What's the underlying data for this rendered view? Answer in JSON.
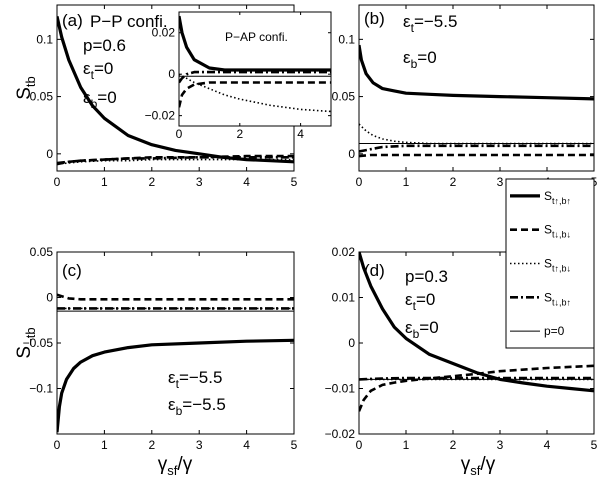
{
  "chart_data": [
    {
      "id": "a",
      "type": "line",
      "xlim": [
        0,
        5
      ],
      "ylim": [
        -0.015,
        0.13
      ],
      "xticks": [
        "0",
        "1",
        "2",
        "3",
        "4",
        "5"
      ],
      "yticks": [
        {
          "v": 0,
          "label": "0"
        },
        {
          "v": 0.05,
          "label": "0.05"
        },
        {
          "v": 0.1,
          "label": "0.1"
        }
      ],
      "ylabel_main": "S",
      "ylabel_sub": "tb",
      "annotations": [
        "(a)",
        "P−P confi.",
        "p=0.6",
        "ε",
        "t",
        "=0",
        "ε",
        "b",
        "=0"
      ],
      "series": [
        {
          "style": "thick",
          "x": [
            0,
            0.1,
            0.25,
            0.5,
            0.75,
            1,
            1.5,
            2,
            2.5,
            3,
            3.5,
            4,
            4.5,
            5
          ],
          "y": [
            0.12,
            0.102,
            0.082,
            0.058,
            0.042,
            0.031,
            0.016,
            0.008,
            0.003,
            0.0,
            -0.003,
            -0.005,
            -0.006,
            -0.007
          ]
        },
        {
          "style": "dashed",
          "x": [
            0,
            0.25,
            0.5,
            1,
            1.5,
            2,
            3,
            4,
            5
          ],
          "y": [
            -0.009,
            -0.007,
            -0.006,
            -0.005,
            -0.004,
            -0.003,
            -0.003,
            -0.002,
            -0.002
          ]
        },
        {
          "style": "dotted",
          "x": [
            0,
            0.25,
            0.5,
            1,
            1.5,
            2,
            3,
            4,
            5
          ],
          "y": [
            -0.009,
            -0.008,
            -0.007,
            -0.006,
            -0.006,
            -0.005,
            -0.005,
            -0.005,
            -0.005
          ]
        },
        {
          "style": "dashdot",
          "x": [
            0,
            0.25,
            0.5,
            1,
            1.5,
            2,
            3,
            4,
            5
          ],
          "y": [
            -0.008,
            -0.007,
            -0.006,
            -0.005,
            -0.004,
            -0.004,
            -0.003,
            -0.003,
            -0.003
          ]
        }
      ]
    },
    {
      "id": "a-inset",
      "type": "line",
      "title": "P−AP confi.",
      "xlim": [
        0,
        5
      ],
      "ylim": [
        -0.025,
        0.03
      ],
      "xticks": [
        "0",
        "2",
        "4"
      ],
      "yticks": [
        {
          "v": 0.02,
          "label": "0.02"
        },
        {
          "v": 0,
          "label": "0"
        },
        {
          "v": -0.02,
          "label": "−0.02"
        }
      ],
      "series": [
        {
          "style": "thick",
          "x": [
            0,
            0.1,
            0.25,
            0.5,
            1,
            1.5,
            2,
            3,
            4,
            5
          ],
          "y": [
            0.028,
            0.02,
            0.013,
            0.007,
            0.003,
            0.002,
            0.002,
            0.002,
            0.002,
            0.002
          ]
        },
        {
          "style": "dashed",
          "x": [
            0,
            0.1,
            0.25,
            0.5,
            1,
            1.5,
            2,
            3,
            4,
            5
          ],
          "y": [
            -0.016,
            -0.01,
            -0.007,
            -0.005,
            -0.004,
            -0.004,
            -0.004,
            -0.004,
            -0.004,
            -0.004
          ]
        },
        {
          "style": "dotted",
          "x": [
            0,
            0.25,
            0.5,
            1,
            1.5,
            2,
            3,
            4,
            5
          ],
          "y": [
            0.0,
            -0.002,
            -0.004,
            -0.007,
            -0.01,
            -0.012,
            -0.015,
            -0.017,
            -0.018
          ]
        },
        {
          "style": "dashdot",
          "x": [
            0,
            0.1,
            0.25,
            0.5,
            1,
            1.5,
            2,
            3,
            4,
            5
          ],
          "y": [
            -0.004,
            -0.002,
            0.0,
            0.001,
            0.001,
            0.001,
            0.001,
            0.001,
            0.001,
            0.001
          ]
        },
        {
          "style": "thin",
          "x": [
            0,
            5
          ],
          "y": [
            -0.001,
            -0.001
          ]
        }
      ]
    },
    {
      "id": "b",
      "type": "line",
      "xlim": [
        0,
        5
      ],
      "ylim": [
        -0.015,
        0.13
      ],
      "xticks": [
        "0",
        "1",
        "2",
        "3",
        "4",
        "5"
      ],
      "yticks": [
        {
          "v": 0,
          "label": "0"
        },
        {
          "v": 0.05,
          "label": "0.05"
        },
        {
          "v": 0.1,
          "label": "0.1"
        }
      ],
      "annotations": [
        "(b)",
        "ε",
        "t",
        "=−5.5",
        "ε",
        "b",
        "=0"
      ],
      "series": [
        {
          "style": "thick",
          "x": [
            0,
            0.05,
            0.15,
            0.3,
            0.5,
            0.75,
            1,
            1.5,
            2,
            3,
            4,
            5
          ],
          "y": [
            0.095,
            0.082,
            0.07,
            0.062,
            0.057,
            0.055,
            0.053,
            0.052,
            0.051,
            0.05,
            0.049,
            0.048
          ]
        },
        {
          "style": "dashed",
          "x": [
            0,
            0.25,
            0.5,
            1,
            2,
            3,
            4,
            5
          ],
          "y": [
            -0.002,
            -0.001,
            -0.001,
            -0.001,
            -0.001,
            -0.001,
            -0.001,
            -0.001
          ]
        },
        {
          "style": "dotted",
          "x": [
            0,
            0.15,
            0.3,
            0.5,
            0.75,
            1,
            1.5,
            2,
            3,
            4,
            5
          ],
          "y": [
            0.026,
            0.02,
            0.016,
            0.013,
            0.011,
            0.01,
            0.009,
            0.009,
            0.009,
            0.009,
            0.009
          ]
        },
        {
          "style": "dashdot",
          "x": [
            0,
            0.25,
            0.5,
            1,
            1.5,
            2,
            3,
            4,
            5
          ],
          "y": [
            0.002,
            0.004,
            0.006,
            0.007,
            0.007,
            0.007,
            0.007,
            0.007,
            0.007
          ]
        },
        {
          "style": "thin",
          "x": [
            0,
            5
          ],
          "y": [
            0.009,
            0.009
          ]
        }
      ]
    },
    {
      "id": "c",
      "type": "line",
      "xlim": [
        0,
        5
      ],
      "ylim": [
        -0.15,
        0.05
      ],
      "xticks": [
        "0",
        "1",
        "2",
        "3",
        "4",
        "5"
      ],
      "yticks": [
        {
          "v": 0.05,
          "label": "0.05"
        },
        {
          "v": 0,
          "label": "0"
        },
        {
          "v": -0.05,
          "label": "−0.05"
        },
        {
          "v": -0.1,
          "label": "−0.1"
        }
      ],
      "ylabel_main": "S",
      "ylabel_sub": "−tb",
      "annotations": [
        "(c)",
        "ε",
        "t",
        "=−5.5",
        "ε",
        "b",
        "=−5.5"
      ],
      "series": [
        {
          "style": "thick",
          "x": [
            0,
            0.05,
            0.1,
            0.2,
            0.35,
            0.5,
            0.75,
            1,
            1.5,
            2,
            3,
            4,
            5
          ],
          "y": [
            -0.148,
            -0.12,
            -0.105,
            -0.09,
            -0.078,
            -0.071,
            -0.064,
            -0.06,
            -0.055,
            -0.052,
            -0.05,
            -0.048,
            -0.047
          ]
        },
        {
          "style": "dashed",
          "x": [
            0,
            0.25,
            0.5,
            1,
            2,
            3,
            4,
            5
          ],
          "y": [
            0.003,
            -0.001,
            -0.002,
            -0.002,
            -0.002,
            -0.002,
            -0.002,
            -0.002
          ]
        },
        {
          "style": "dotted",
          "x": [
            0,
            0.5,
            1,
            2,
            3,
            4,
            5
          ],
          "y": [
            -0.012,
            -0.012,
            -0.012,
            -0.012,
            -0.012,
            -0.012,
            -0.012
          ]
        },
        {
          "style": "dashdot",
          "x": [
            0,
            0.5,
            1,
            2,
            3,
            4,
            5
          ],
          "y": [
            -0.012,
            -0.012,
            -0.012,
            -0.012,
            -0.012,
            -0.012,
            -0.012
          ]
        },
        {
          "style": "thin",
          "x": [
            0,
            5
          ],
          "y": [
            -0.015,
            -0.015
          ]
        }
      ]
    },
    {
      "id": "d",
      "type": "line",
      "xlim": [
        0,
        5
      ],
      "ylim": [
        -0.02,
        0.02
      ],
      "xticks": [
        "0",
        "1",
        "2",
        "3",
        "4",
        "5"
      ],
      "yticks": [
        {
          "v": 0.02,
          "label": "0.02"
        },
        {
          "v": 0.01,
          "label": "0.01"
        },
        {
          "v": 0,
          "label": "0"
        },
        {
          "v": -0.01,
          "label": "−0.01"
        },
        {
          "v": -0.02,
          "label": "−0.02"
        }
      ],
      "annotations": [
        "(d)",
        "p=0.3",
        "ε",
        "t",
        "=0",
        "ε",
        "b",
        "=0"
      ],
      "series": [
        {
          "style": "thick",
          "x": [
            0,
            0.1,
            0.25,
            0.5,
            0.75,
            1,
            1.5,
            2,
            2.5,
            3,
            3.5,
            4,
            4.5,
            5
          ],
          "y": [
            0.02,
            0.0165,
            0.0125,
            0.0075,
            0.0035,
            0.001,
            -0.0025,
            -0.0045,
            -0.0065,
            -0.008,
            -0.0088,
            -0.0095,
            -0.01,
            -0.0105
          ]
        },
        {
          "style": "dashed",
          "x": [
            0,
            0.1,
            0.25,
            0.5,
            0.75,
            1,
            1.5,
            2,
            2.5,
            3,
            4,
            5
          ],
          "y": [
            -0.015,
            -0.0125,
            -0.0105,
            -0.0092,
            -0.0087,
            -0.0083,
            -0.0078,
            -0.0073,
            -0.0068,
            -0.0062,
            -0.0055,
            -0.005
          ]
        },
        {
          "style": "dotted",
          "x": [
            0,
            0.5,
            1,
            2,
            3,
            4,
            5
          ],
          "y": [
            -0.008,
            -0.008,
            -0.008,
            -0.008,
            -0.008,
            -0.008,
            -0.008
          ]
        },
        {
          "style": "dashdot",
          "x": [
            0,
            0.5,
            1,
            1.5,
            2,
            3,
            4,
            5
          ],
          "y": [
            -0.008,
            -0.0078,
            -0.0077,
            -0.0077,
            -0.0077,
            -0.0077,
            -0.0077,
            -0.0077
          ]
        },
        {
          "style": "thin",
          "x": [
            0,
            5
          ],
          "y": [
            -0.008,
            -0.008
          ]
        }
      ]
    }
  ],
  "xlabel_main": "γ",
  "xlabel_sub": "sf",
  "xlabel_tail": "/γ",
  "legend": [
    {
      "style": "thick",
      "main": "S",
      "sub": "t↑,b↑"
    },
    {
      "style": "dashed",
      "main": "S",
      "sub": "t↓,b↓"
    },
    {
      "style": "dotted",
      "main": "S",
      "sub": "t↑,b↓"
    },
    {
      "style": "dashdot",
      "main": "S",
      "sub": "t↓,b↑"
    },
    {
      "style": "thin",
      "main": "p=0",
      "sub": ""
    }
  ]
}
